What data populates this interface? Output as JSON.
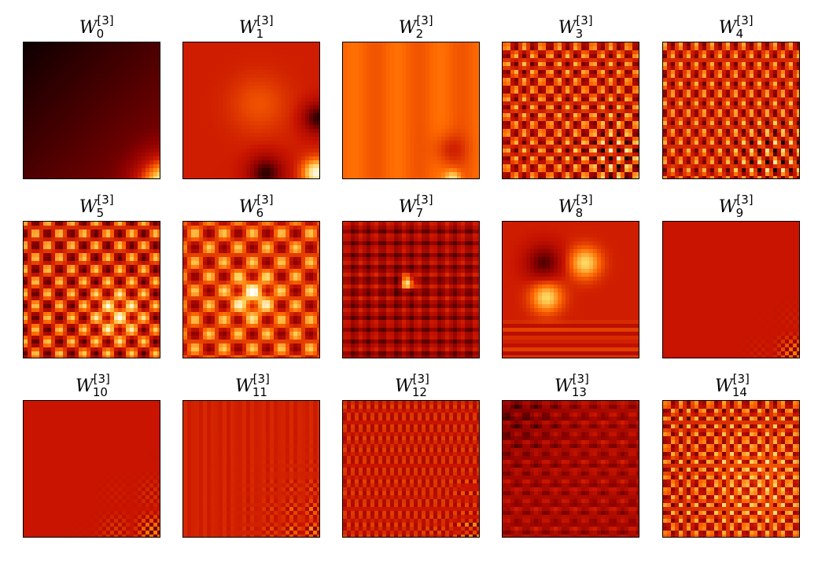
{
  "figure": {
    "symbol": "W",
    "superscript": "[3]",
    "colormap": "hot",
    "colormap_stops": [
      "#000000",
      "#8a0000",
      "#c81400",
      "#ff6a00",
      "#ffd25a",
      "#ffffff"
    ]
  },
  "chart_data": {
    "type": "heatmap",
    "layout": "3 rows x 5 columns grid of heatmap panels",
    "axes_ticks": false,
    "panels": [
      {
        "index": "0",
        "title": "W",
        "superscript": "[3]",
        "subscript": "0",
        "pattern": "smooth gradient, dark top-left to bright bottom-right corner"
      },
      {
        "index": "1",
        "title": "W",
        "superscript": "[3]",
        "subscript": "1",
        "pattern": "smooth blobs, dark right edge, bright bottom-right"
      },
      {
        "index": "2",
        "title": "W",
        "superscript": "[3]",
        "subscript": "2",
        "pattern": "mostly uniform orange with darker spot bottom-right"
      },
      {
        "index": "3",
        "title": "W",
        "superscript": "[3]",
        "subscript": "3",
        "pattern": "fine checkerboard"
      },
      {
        "index": "4",
        "title": "W",
        "superscript": "[3]",
        "subscript": "4",
        "pattern": "fine checkerboard"
      },
      {
        "index": "5",
        "title": "W",
        "superscript": "[3]",
        "subscript": "5",
        "pattern": "coarse checkerboard"
      },
      {
        "index": "6",
        "title": "W",
        "superscript": "[3]",
        "subscript": "6",
        "pattern": "coarse checkerboard"
      },
      {
        "index": "7",
        "title": "W",
        "superscript": "[3]",
        "subscript": "7",
        "pattern": "dark red with stripes and bright center spot"
      },
      {
        "index": "8",
        "title": "W",
        "superscript": "[3]",
        "subscript": "8",
        "pattern": "large blocks with stripes"
      },
      {
        "index": "9",
        "title": "W",
        "superscript": "[3]",
        "subscript": "9",
        "pattern": "uniform red, faint checker bottom-right"
      },
      {
        "index": "10",
        "title": "W",
        "superscript": "[3]",
        "subscript": "10",
        "pattern": "uniform red, faint checker bottom-right"
      },
      {
        "index": "11",
        "title": "W",
        "superscript": "[3]",
        "subscript": "11",
        "pattern": "uniform red-orange, faint checker bottom-right"
      },
      {
        "index": "12",
        "title": "W",
        "superscript": "[3]",
        "subscript": "12",
        "pattern": "red with fine stripes"
      },
      {
        "index": "13",
        "title": "W",
        "superscript": "[3]",
        "subscript": "13",
        "pattern": "dark red with stripes"
      },
      {
        "index": "14",
        "title": "W",
        "superscript": "[3]",
        "subscript": "14",
        "pattern": "fine checkerboard"
      }
    ]
  }
}
